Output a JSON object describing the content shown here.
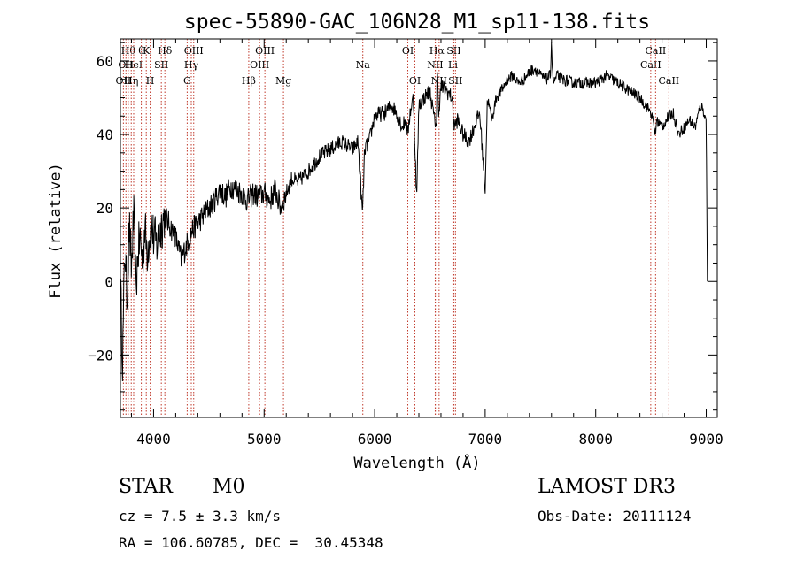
{
  "chart_data": {
    "type": "line",
    "title": "spec-55890-GAC_106N28_M1_sp11-138.fits",
    "xlabel": "Wavelength (Å)",
    "ylabel": "Flux (relative)",
    "xlim": [
      3700,
      9100
    ],
    "ylim": [
      -37,
      66
    ],
    "xticks": [
      4000,
      5000,
      6000,
      7000,
      8000,
      9000
    ],
    "yticks": [
      -20,
      0,
      20,
      40,
      60
    ],
    "xtick_labels": [
      "4000",
      "5000",
      "6000",
      "7000",
      "8000",
      "9000"
    ],
    "ytick_labels": [
      "−20",
      "0",
      "20",
      "40",
      "60"
    ],
    "series": [
      {
        "name": "spectrum",
        "x": [
          3700,
          3720,
          3740,
          3760,
          3780,
          3800,
          3820,
          3840,
          3860,
          3880,
          3900,
          3920,
          3940,
          3960,
          3980,
          4000,
          4030,
          4060,
          4100,
          4150,
          4200,
          4250,
          4300,
          4350,
          4400,
          4450,
          4500,
          4550,
          4600,
          4650,
          4700,
          4750,
          4800,
          4850,
          4900,
          4950,
          5000,
          5050,
          5100,
          5150,
          5200,
          5250,
          5300,
          5400,
          5500,
          5600,
          5700,
          5800,
          5850,
          5890,
          5910,
          5950,
          6000,
          6100,
          6150,
          6200,
          6250,
          6280,
          6300,
          6320,
          6350,
          6380,
          6400,
          6450,
          6500,
          6520,
          6540,
          6560,
          6565,
          6580,
          6600,
          6650,
          6700,
          6720,
          6750,
          6800,
          6850,
          6900,
          6950,
          7000,
          7020,
          7040,
          7060,
          7100,
          7150,
          7200,
          7250,
          7300,
          7350,
          7400,
          7450,
          7500,
          7550,
          7590,
          7600,
          7610,
          7620,
          7650,
          7700,
          7800,
          7900,
          8000,
          8100,
          8200,
          8300,
          8400,
          8500,
          8542,
          8550,
          8600,
          8662,
          8700,
          8750,
          8800,
          8850,
          8900,
          8950,
          8980,
          9000,
          9010
        ],
        "values": [
          0,
          -22,
          10,
          -5,
          15,
          3,
          18,
          -2,
          8,
          12,
          5,
          15,
          8,
          12,
          15,
          12,
          10,
          14,
          18,
          15,
          12,
          6,
          10,
          14,
          16,
          18,
          20,
          22,
          25,
          23,
          26,
          25,
          24,
          22,
          24,
          23,
          24,
          22,
          25,
          20,
          24,
          28,
          27,
          30,
          34,
          36,
          38,
          36,
          38,
          18,
          36,
          38,
          45,
          46,
          48,
          46,
          42,
          44,
          40,
          46,
          50,
          22,
          48,
          50,
          52,
          48,
          44,
          43,
          58,
          46,
          53,
          52,
          50,
          42,
          44,
          40,
          38,
          42,
          46,
          25,
          50,
          47,
          44,
          50,
          52,
          55,
          56,
          54,
          55,
          57,
          58,
          56,
          55,
          56,
          66,
          56,
          54,
          56,
          55,
          54,
          54,
          54,
          56,
          54,
          52,
          50,
          46,
          40,
          44,
          42,
          45,
          46,
          40,
          42,
          44,
          42,
          48,
          46,
          44,
          0
        ]
      }
    ],
    "lines": [
      {
        "x": 3727,
        "label": "OII",
        "row": 2
      },
      {
        "x": 3750,
        "label": "OII",
        "row": 1
      },
      {
        "x": 3771,
        "label": "Hθ",
        "row": 0
      },
      {
        "x": 3798,
        "label": "Hη",
        "row": 2
      },
      {
        "x": 3820,
        "label": "HeI",
        "row": 1
      },
      {
        "x": 3889,
        "label": "θ",
        "row": 0
      },
      {
        "x": 3934,
        "label": "K",
        "row": 0
      },
      {
        "x": 3969,
        "label": "H",
        "row": 2
      },
      {
        "x": 4070,
        "label": "SII",
        "row": 1
      },
      {
        "x": 4102,
        "label": "Hδ",
        "row": 0
      },
      {
        "x": 4304,
        "label": "G",
        "row": 2
      },
      {
        "x": 4341,
        "label": "Hγ",
        "row": 1
      },
      {
        "x": 4363,
        "label": "OIII",
        "row": 0
      },
      {
        "x": 4861,
        "label": "Hβ",
        "row": 2
      },
      {
        "x": 4959,
        "label": "OIII",
        "row": 1
      },
      {
        "x": 5007,
        "label": "OIII",
        "row": 0
      },
      {
        "x": 5175,
        "label": "Mg",
        "row": 2
      },
      {
        "x": 5893,
        "label": "Na",
        "row": 1
      },
      {
        "x": 6300,
        "label": "OI",
        "row": 0
      },
      {
        "x": 6364,
        "label": "OI",
        "row": 2
      },
      {
        "x": 6548,
        "label": "NII",
        "row": 1
      },
      {
        "x": 6563,
        "label": "Hα",
        "row": 0
      },
      {
        "x": 6583,
        "label": "NII",
        "row": 2
      },
      {
        "x": 6708,
        "label": "Li",
        "row": 1
      },
      {
        "x": 6716,
        "label": "SII",
        "row": 0
      },
      {
        "x": 6731,
        "label": "SII",
        "row": 2
      },
      {
        "x": 8498,
        "label": "CaII",
        "row": 1
      },
      {
        "x": 8542,
        "label": "CaII",
        "row": 0
      },
      {
        "x": 8662,
        "label": "CaII",
        "row": 2
      }
    ]
  },
  "info": {
    "object_class": "STAR",
    "subclass": "M0",
    "survey": "LAMOST DR3",
    "cz_text": "cz = 7.5 ± 3.3 km/s",
    "obs_date": "Obs-Date: 20111124",
    "radec": "RA = 106.60785, DEC =  30.45348"
  }
}
